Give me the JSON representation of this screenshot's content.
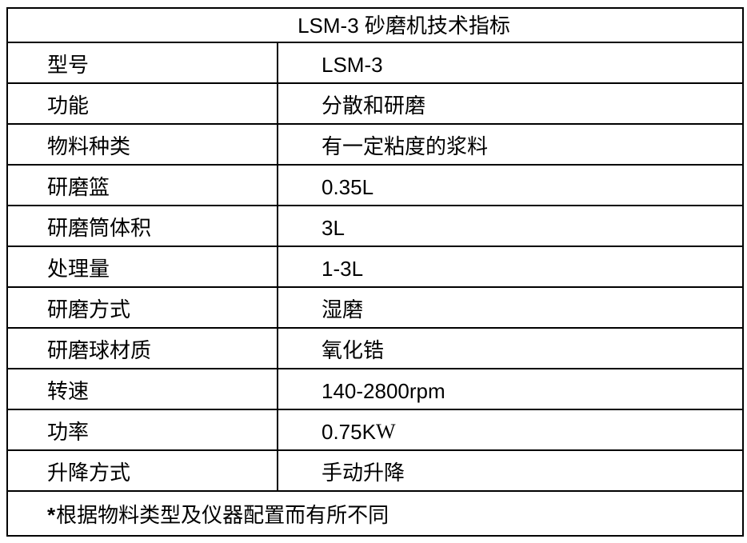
{
  "page": {
    "background": "#ffffff",
    "border_color": "#000000",
    "text_color": "#000000"
  },
  "table": {
    "title": "LSM-3 砂磨机技术指标",
    "rows": [
      {
        "label": "型号",
        "value": "LSM-3"
      },
      {
        "label": "功能",
        "value": "分散和研磨"
      },
      {
        "label": "物料种类",
        "value": "有一定粘度的浆料"
      },
      {
        "label": "研磨篮",
        "value": "0.35L"
      },
      {
        "label": "研磨筒体积",
        "value": "3L"
      },
      {
        "label": "处理量",
        "value": "1-3L"
      },
      {
        "label": "研磨方式",
        "value": "湿磨"
      },
      {
        "label": "研磨球材质",
        "value": "氧化锆"
      },
      {
        "label": "转速",
        "value": "140-2800rpm"
      },
      {
        "label": "功率",
        "value": "0.75K",
        "value_suffix": "W"
      },
      {
        "label": "升降方式",
        "value": "手动升降"
      }
    ],
    "footnote_marker": "*",
    "footnote": "根据物料类型及仪器配置而有所不同"
  }
}
